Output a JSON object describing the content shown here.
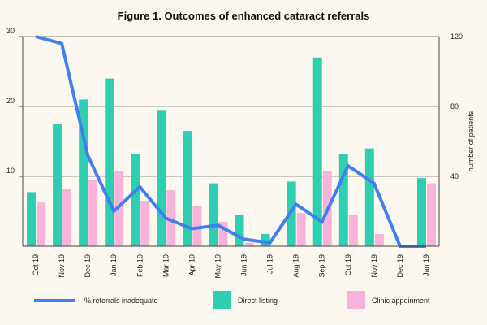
{
  "chart_data": {
    "type": "bar+line",
    "title": "Figure 1.  Outcomes of enhanced cataract referrals",
    "categories": [
      "Oct 19",
      "Nov 19",
      "Dec 19",
      "Jan 19",
      "Feb 19",
      "Mar 19",
      "Apr 19",
      "May 19",
      "Jun 19",
      "Jul 19",
      "Aug 19",
      "Sep 19",
      "Oct 19",
      "Nov 19",
      "Dec 19",
      "Jan 19"
    ],
    "series": [
      {
        "name": "Direct listing",
        "kind": "bar",
        "axis": "right",
        "color": "#2dcfb0",
        "values": [
          31,
          70,
          84,
          96,
          53,
          78,
          66,
          36,
          18,
          7,
          37,
          108,
          53,
          56,
          0,
          39
        ]
      },
      {
        "name": "Clinic appoinment",
        "kind": "bar",
        "axis": "right",
        "color": "#f7b3d9",
        "values": [
          25,
          33,
          38,
          43,
          26,
          32,
          23,
          14,
          2,
          0,
          19,
          43,
          18,
          7,
          0,
          36
        ]
      },
      {
        "name": "% referrals inadequate",
        "kind": "line",
        "axis": "left",
        "color": "#3f7ff0",
        "values": [
          30,
          29,
          13,
          5,
          8.5,
          4,
          2.5,
          3,
          1,
          0.5,
          6,
          3.5,
          11.5,
          9,
          0,
          0
        ]
      }
    ],
    "left_axis": {
      "ticks": [
        10,
        20,
        30
      ],
      "range": [
        0,
        30
      ]
    },
    "right_axis": {
      "label": "number of patients",
      "ticks": [
        40,
        80,
        120
      ],
      "range": [
        0,
        120
      ]
    },
    "legend_position": "bottom"
  }
}
